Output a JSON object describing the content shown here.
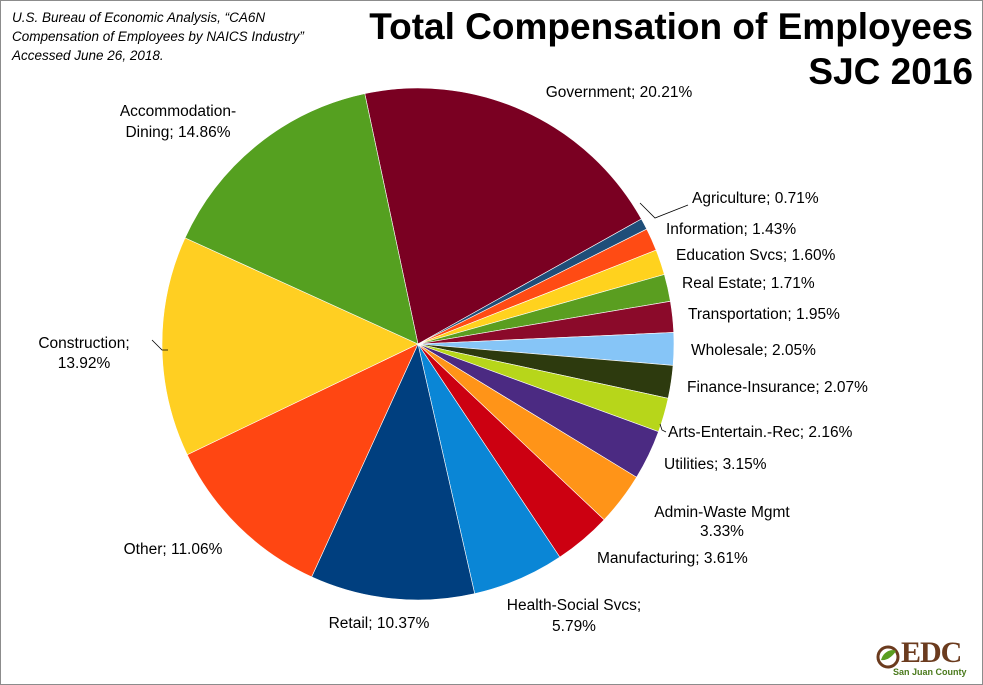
{
  "source_note": {
    "line1": "U.S. Bureau of Economic Analysis, “CA6N",
    "line2": "Compensation of Employees by NAICS Industry”",
    "line3": "Accessed June 26, 2018."
  },
  "title": {
    "line1": "Total Compensation of Employees",
    "line2": "SJC 2016"
  },
  "logo": {
    "text": "EDC",
    "subtext": "San Juan County"
  },
  "chart_data": {
    "type": "pie",
    "title": "Total Compensation of Employees SJC 2016",
    "unit": "%",
    "start_category": "Government",
    "direction": "clockwise",
    "slices": [
      {
        "label": "Government",
        "value": 20.21,
        "color": "#7a0022",
        "label_lines": [
          "Government; 20.21%"
        ]
      },
      {
        "label": "Agriculture",
        "value": 0.71,
        "color": "#1f4e79",
        "label_lines": [
          "Agriculture; 0.71%"
        ]
      },
      {
        "label": "Information",
        "value": 1.43,
        "color": "#ff4b14",
        "label_lines": [
          "Information; 1.43%"
        ]
      },
      {
        "label": "Education Svcs",
        "value": 1.6,
        "color": "#ffd21e",
        "label_lines": [
          "Education Svcs; 1.60%"
        ]
      },
      {
        "label": "Real Estate",
        "value": 1.71,
        "color": "#5a9e20",
        "label_lines": [
          "Real Estate; 1.71%"
        ]
      },
      {
        "label": "Transportation",
        "value": 1.95,
        "color": "#8b0a2a",
        "label_lines": [
          "Transportation; 1.95%"
        ]
      },
      {
        "label": "Wholesale",
        "value": 2.05,
        "color": "#86c5f7",
        "label_lines": [
          "Wholesale; 2.05%"
        ]
      },
      {
        "label": "Finance-Insurance",
        "value": 2.07,
        "color": "#2d3a0e",
        "label_lines": [
          "Finance-Insurance; 2.07%"
        ]
      },
      {
        "label": "Arts-Entertain.-Rec",
        "value": 2.16,
        "color": "#b7d61a",
        "label_lines": [
          "Arts-Entertain.-Rec; 2.16%"
        ]
      },
      {
        "label": "Utilities",
        "value": 3.15,
        "color": "#4b2a82",
        "label_lines": [
          "Utilities; 3.15%"
        ]
      },
      {
        "label": "Admin-Waste Mgmt",
        "value": 3.33,
        "color": "#ff9418",
        "label_lines": [
          "Admin-Waste Mgmt",
          "3.33%"
        ]
      },
      {
        "label": "Manufacturing",
        "value": 3.61,
        "color": "#cc0011",
        "label_lines": [
          "Manufacturing; 3.61%"
        ]
      },
      {
        "label": "Health-Social Svcs",
        "value": 5.79,
        "color": "#0a86d6",
        "label_lines": [
          "Health-Social Svcs;",
          "5.79%"
        ]
      },
      {
        "label": "Retail",
        "value": 10.37,
        "color": "#003f7f",
        "label_lines": [
          "Retail; 10.37%"
        ]
      },
      {
        "label": "Other",
        "value": 11.06,
        "color": "#ff4612",
        "label_lines": [
          "Other; 11.06%"
        ]
      },
      {
        "label": "Construction",
        "value": 13.92,
        "color": "#ffcf22",
        "label_lines": [
          "Construction;",
          "13.92%"
        ]
      },
      {
        "label": "Accommodation-Dining",
        "value": 14.86,
        "color": "#55a020",
        "label_lines": [
          "Accommodation-",
          "Dining; 14.86%"
        ]
      }
    ]
  }
}
